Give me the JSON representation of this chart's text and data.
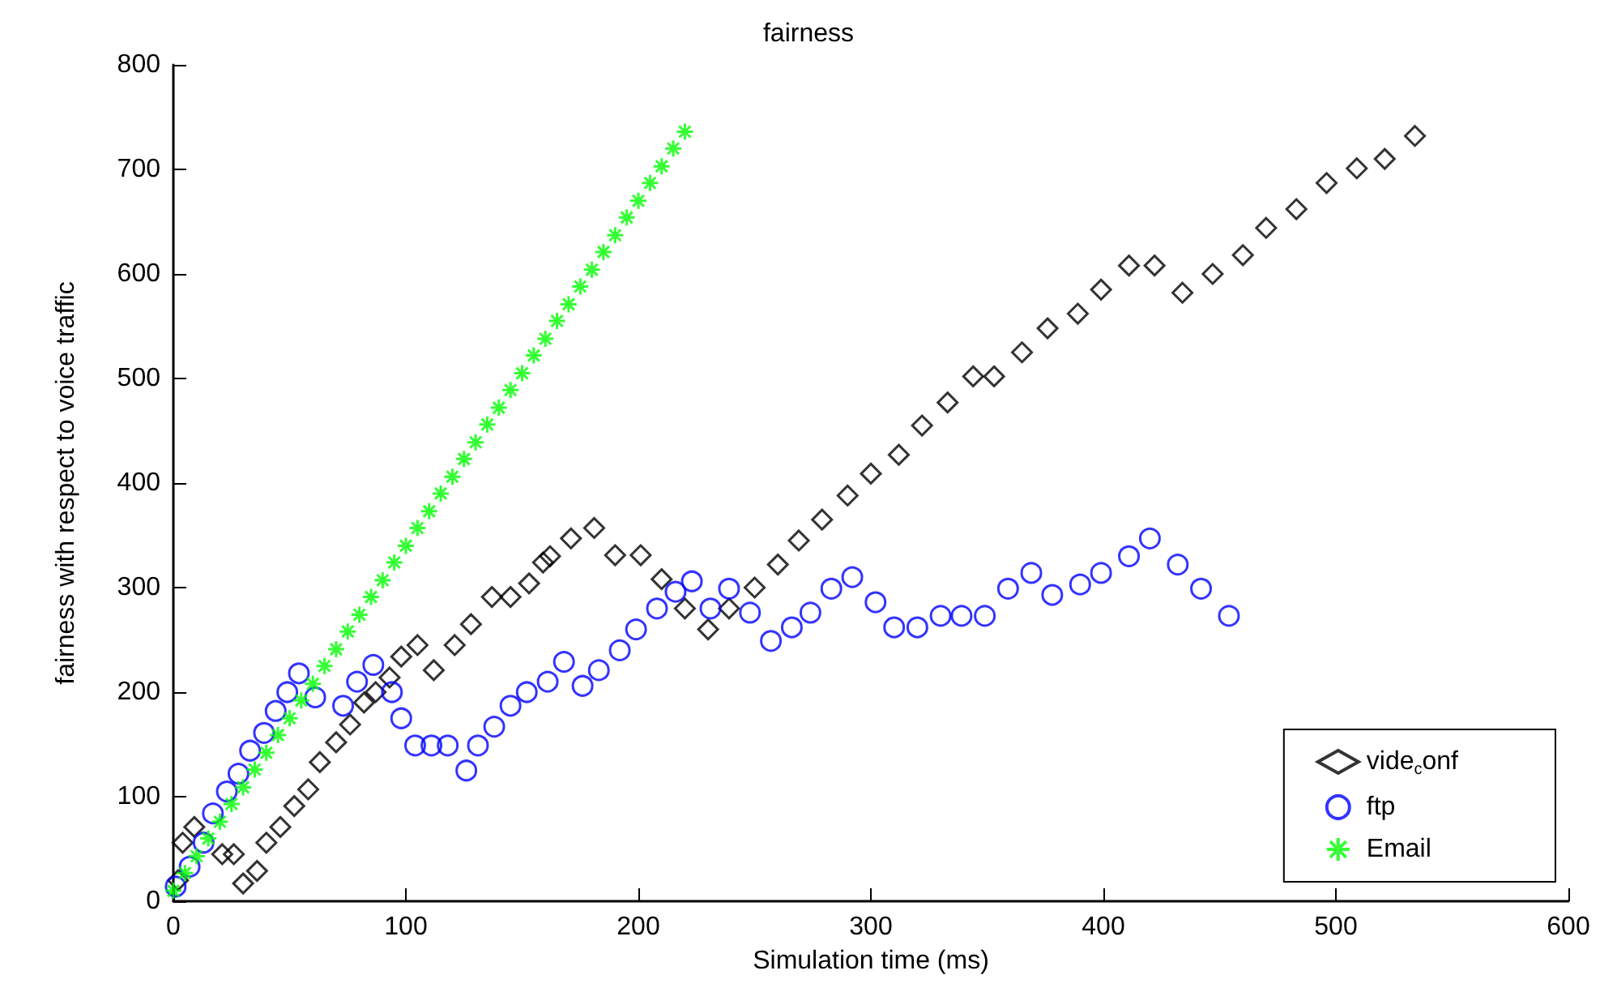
{
  "chart_data": {
    "type": "scatter",
    "title": "fairness",
    "xlabel": "Simulation time (ms)",
    "ylabel": "fairness with respect to voice traffic",
    "xlim": [
      0,
      600
    ],
    "xticks": [
      0,
      100,
      200,
      300,
      400,
      500,
      600
    ],
    "ylim": [
      0,
      800
    ],
    "yticks": [
      0,
      100,
      200,
      300,
      400,
      500,
      600,
      700,
      800
    ],
    "grid": false,
    "legend": "bottom right",
    "series": [
      {
        "name": "vide$_{c}$onf",
        "color": "#000000",
        "marker": "diamond",
        "x": [
          2,
          4,
          9,
          21,
          26,
          30,
          36,
          40,
          46,
          52,
          58,
          63,
          70,
          76,
          82,
          87,
          93,
          98,
          105,
          112,
          121,
          128,
          137,
          145,
          153,
          159,
          162,
          171,
          181,
          190,
          201,
          210,
          220,
          230,
          239,
          250,
          260,
          269,
          279,
          290,
          300,
          312,
          322,
          333,
          344,
          353,
          365,
          376,
          389,
          399,
          411,
          422,
          434,
          447,
          460,
          470,
          483,
          496,
          509,
          521,
          534
        ],
        "values": [
          20,
          56,
          71,
          45,
          45,
          17,
          29,
          56,
          71,
          91,
          107,
          133,
          152,
          169,
          190,
          200,
          214,
          234,
          245,
          221,
          245,
          265,
          291,
          291,
          304,
          324,
          330,
          347,
          357,
          331,
          331,
          308,
          280,
          260,
          280,
          300,
          322,
          345,
          365,
          388,
          409,
          427,
          455,
          477,
          502,
          502,
          525,
          548,
          562,
          585,
          608,
          608,
          582,
          600,
          618,
          644,
          662,
          687,
          701,
          710,
          732
        ]
      },
      {
        "name": "ftp",
        "color": "#0000ff",
        "marker": "circle",
        "x": [
          1,
          7,
          13,
          17,
          23,
          28,
          33,
          39,
          44,
          49,
          54,
          61,
          73,
          79,
          86,
          94,
          98,
          104,
          111,
          118,
          126,
          131,
          138,
          145,
          152,
          161,
          168,
          176,
          183,
          192,
          199,
          208,
          216,
          223,
          231,
          239,
          248,
          257,
          266,
          274,
          283,
          292,
          302,
          310,
          320,
          330,
          339,
          349,
          359,
          369,
          378,
          390,
          399,
          411,
          420,
          432,
          442,
          454
        ],
        "values": [
          14,
          33,
          56,
          84,
          105,
          122,
          144,
          161,
          182,
          200,
          218,
          195,
          187,
          210,
          226,
          200,
          175,
          149,
          149,
          149,
          125,
          149,
          167,
          187,
          200,
          210,
          229,
          206,
          221,
          240,
          260,
          280,
          296,
          306,
          280,
          299,
          276,
          249,
          262,
          276,
          299,
          310,
          286,
          262,
          262,
          273,
          273,
          273,
          299,
          314,
          293,
          303,
          314,
          330,
          347,
          322,
          299,
          273
        ]
      },
      {
        "name": "Email",
        "color": "#00ff00",
        "marker": "cross",
        "x": [
          0,
          5,
          10,
          15,
          20,
          25,
          30,
          35,
          40,
          45,
          50,
          55,
          60,
          65,
          70,
          75,
          80,
          85,
          90,
          95,
          100,
          105,
          110,
          115,
          120,
          125,
          130,
          135,
          140,
          145,
          150,
          155,
          160,
          165,
          170,
          175,
          180,
          185,
          190,
          195,
          200,
          205,
          210,
          215,
          220
        ],
        "values": [
          10,
          27,
          43,
          60,
          76,
          93,
          109,
          126,
          142,
          159,
          175,
          192,
          208,
          225,
          241,
          258,
          274,
          291,
          307,
          324,
          340,
          357,
          373,
          390,
          406,
          423,
          439,
          456,
          472,
          489,
          505,
          522,
          538,
          555,
          571,
          588,
          604,
          621,
          637,
          654,
          670,
          687,
          703,
          720,
          736
        ]
      }
    ]
  }
}
